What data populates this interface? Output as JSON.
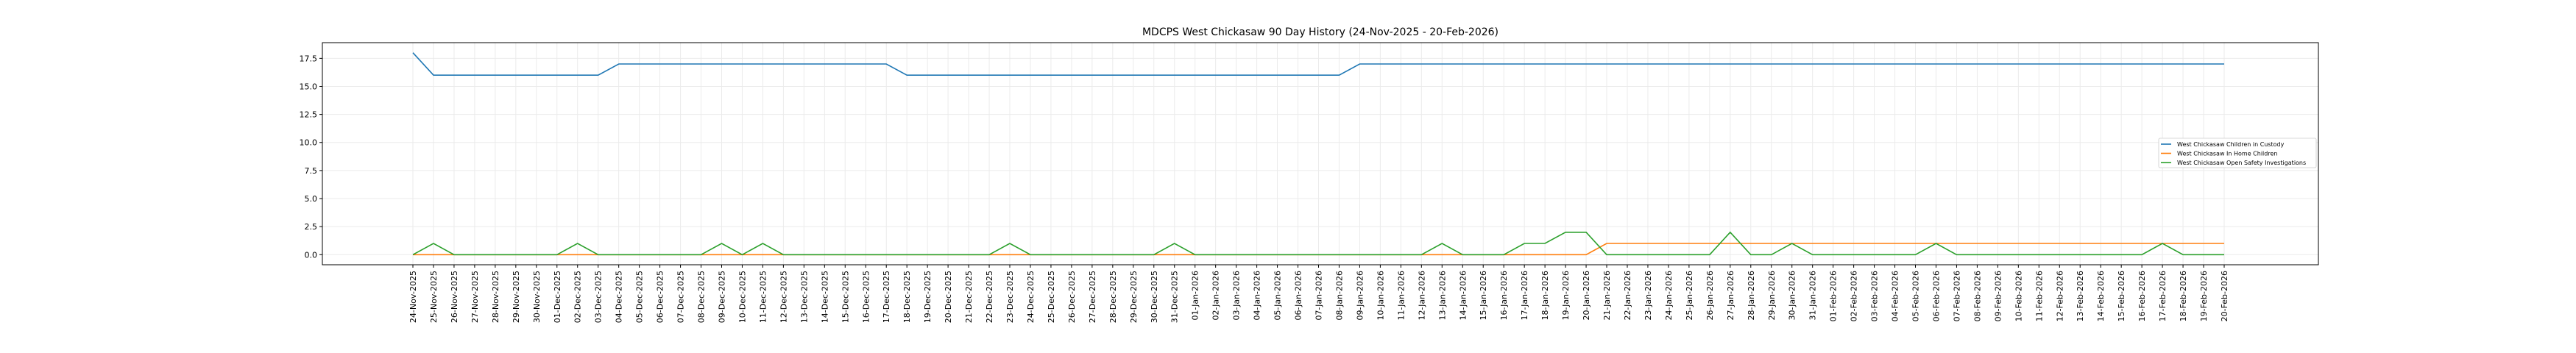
{
  "chart_data": {
    "type": "line",
    "title": "MDCPS West Chickasaw 90 Day History (24-Nov-2025 - 20-Feb-2026)",
    "xlabel": "",
    "ylabel": "",
    "ylim": [
      -0.9,
      18.9
    ],
    "yticks": [
      0.0,
      2.5,
      5.0,
      7.5,
      10.0,
      12.5,
      15.0,
      17.5
    ],
    "ytick_labels": [
      "0.0",
      "2.5",
      "5.0",
      "7.5",
      "10.0",
      "12.5",
      "15.0",
      "17.5"
    ],
    "grid": true,
    "legend_position": "center-right",
    "x": [
      "24-Nov-2025",
      "25-Nov-2025",
      "26-Nov-2025",
      "27-Nov-2025",
      "28-Nov-2025",
      "29-Nov-2025",
      "30-Nov-2025",
      "01-Dec-2025",
      "02-Dec-2025",
      "03-Dec-2025",
      "04-Dec-2025",
      "05-Dec-2025",
      "06-Dec-2025",
      "07-Dec-2025",
      "08-Dec-2025",
      "09-Dec-2025",
      "10-Dec-2025",
      "11-Dec-2025",
      "12-Dec-2025",
      "13-Dec-2025",
      "14-Dec-2025",
      "15-Dec-2025",
      "16-Dec-2025",
      "17-Dec-2025",
      "18-Dec-2025",
      "19-Dec-2025",
      "20-Dec-2025",
      "21-Dec-2025",
      "22-Dec-2025",
      "23-Dec-2025",
      "24-Dec-2025",
      "25-Dec-2025",
      "26-Dec-2025",
      "27-Dec-2025",
      "28-Dec-2025",
      "29-Dec-2025",
      "30-Dec-2025",
      "31-Dec-2025",
      "01-Jan-2026",
      "02-Jan-2026",
      "03-Jan-2026",
      "04-Jan-2026",
      "05-Jan-2026",
      "06-Jan-2026",
      "07-Jan-2026",
      "08-Jan-2026",
      "09-Jan-2026",
      "10-Jan-2026",
      "11-Jan-2026",
      "12-Jan-2026",
      "13-Jan-2026",
      "14-Jan-2026",
      "15-Jan-2026",
      "16-Jan-2026",
      "17-Jan-2026",
      "18-Jan-2026",
      "19-Jan-2026",
      "20-Jan-2026",
      "21-Jan-2026",
      "22-Jan-2026",
      "23-Jan-2026",
      "24-Jan-2026",
      "25-Jan-2026",
      "26-Jan-2026",
      "27-Jan-2026",
      "28-Jan-2026",
      "29-Jan-2026",
      "30-Jan-2026",
      "31-Jan-2026",
      "01-Feb-2026",
      "02-Feb-2026",
      "03-Feb-2026",
      "04-Feb-2026",
      "05-Feb-2026",
      "06-Feb-2026",
      "07-Feb-2026",
      "08-Feb-2026",
      "09-Feb-2026",
      "10-Feb-2026",
      "11-Feb-2026",
      "12-Feb-2026",
      "13-Feb-2026",
      "14-Feb-2026",
      "15-Feb-2026",
      "16-Feb-2026",
      "17-Feb-2026",
      "18-Feb-2026",
      "19-Feb-2026",
      "20-Feb-2026"
    ],
    "series": [
      {
        "name": "West Chickasaw Children in Custody",
        "color": "#1f77b4",
        "values": [
          18,
          16,
          16,
          16,
          16,
          16,
          16,
          16,
          16,
          16,
          17,
          17,
          17,
          17,
          17,
          17,
          17,
          17,
          17,
          17,
          17,
          17,
          17,
          17,
          16,
          16,
          16,
          16,
          16,
          16,
          16,
          16,
          16,
          16,
          16,
          16,
          16,
          16,
          16,
          16,
          16,
          16,
          16,
          16,
          16,
          16,
          17,
          17,
          17,
          17,
          17,
          17,
          17,
          17,
          17,
          17,
          17,
          17,
          17,
          17,
          17,
          17,
          17,
          17,
          17,
          17,
          17,
          17,
          17,
          17,
          17,
          17,
          17,
          17,
          17,
          17,
          17,
          17,
          17,
          17,
          17,
          17,
          17,
          17,
          17,
          17,
          17,
          17,
          17
        ]
      },
      {
        "name": "West Chickasaw In Home Children",
        "color": "#ff7f0e",
        "values": [
          0,
          0,
          0,
          0,
          0,
          0,
          0,
          0,
          0,
          0,
          0,
          0,
          0,
          0,
          0,
          0,
          0,
          0,
          0,
          0,
          0,
          0,
          0,
          0,
          0,
          0,
          0,
          0,
          0,
          0,
          0,
          0,
          0,
          0,
          0,
          0,
          0,
          0,
          0,
          0,
          0,
          0,
          0,
          0,
          0,
          0,
          0,
          0,
          0,
          0,
          0,
          0,
          0,
          0,
          0,
          0,
          0,
          0,
          1,
          1,
          1,
          1,
          1,
          1,
          1,
          1,
          1,
          1,
          1,
          1,
          1,
          1,
          1,
          1,
          1,
          1,
          1,
          1,
          1,
          1,
          1,
          1,
          1,
          1,
          1,
          1,
          1,
          1,
          1
        ]
      },
      {
        "name": "West Chickasaw Open Safety Investigations",
        "color": "#2ca02c",
        "values": [
          0,
          1,
          0,
          0,
          0,
          0,
          0,
          0,
          1,
          0,
          0,
          0,
          0,
          0,
          0,
          1,
          0,
          1,
          0,
          0,
          0,
          0,
          0,
          0,
          0,
          0,
          0,
          0,
          0,
          1,
          0,
          0,
          0,
          0,
          0,
          0,
          0,
          1,
          0,
          0,
          0,
          0,
          0,
          0,
          0,
          0,
          0,
          0,
          0,
          0,
          1,
          0,
          0,
          0,
          1,
          1,
          2,
          2,
          0,
          0,
          0,
          0,
          0,
          0,
          2,
          0,
          0,
          1,
          0,
          0,
          0,
          0,
          0,
          0,
          1,
          0,
          0,
          0,
          0,
          0,
          0,
          0,
          0,
          0,
          0,
          1,
          0,
          0,
          0
        ]
      }
    ]
  }
}
